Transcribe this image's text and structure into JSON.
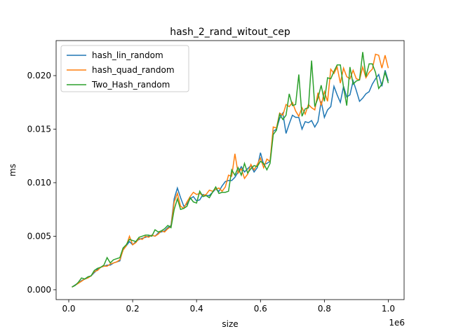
{
  "chart_data": {
    "type": "line",
    "title": "hash_2_rand_witout_cep",
    "x_label": "size",
    "y_label": "ms",
    "x_offset_label": "1e6",
    "x": [
      10000,
      20000,
      30000,
      40000,
      50000,
      60000,
      70000,
      80000,
      90000,
      100000,
      110000,
      120000,
      130000,
      140000,
      150000,
      160000,
      170000,
      180000,
      190000,
      200000,
      210000,
      220000,
      230000,
      240000,
      250000,
      260000,
      270000,
      280000,
      290000,
      300000,
      310000,
      320000,
      330000,
      340000,
      350000,
      360000,
      370000,
      380000,
      390000,
      400000,
      410000,
      420000,
      430000,
      440000,
      450000,
      460000,
      470000,
      480000,
      490000,
      500000,
      510000,
      520000,
      530000,
      540000,
      550000,
      560000,
      570000,
      580000,
      590000,
      600000,
      610000,
      620000,
      630000,
      640000,
      650000,
      660000,
      670000,
      680000,
      690000,
      700000,
      710000,
      720000,
      730000,
      740000,
      750000,
      760000,
      770000,
      780000,
      790000,
      800000,
      810000,
      820000,
      830000,
      840000,
      850000,
      860000,
      870000,
      880000,
      890000,
      900000,
      910000,
      920000,
      930000,
      940000,
      950000,
      960000,
      970000,
      980000,
      990000,
      1000000
    ],
    "series": [
      {
        "name": "hash_lin_random",
        "color": "#1f77b4",
        "values": [
          0.00025,
          0.00045,
          0.00062,
          0.00085,
          0.001,
          0.0012,
          0.0013,
          0.0016,
          0.0019,
          0.0021,
          0.0022,
          0.0023,
          0.0023,
          0.0025,
          0.0026,
          0.0027,
          0.0038,
          0.0041,
          0.0045,
          0.0042,
          0.0045,
          0.0047,
          0.0048,
          0.0049,
          0.005,
          0.0051,
          0.005,
          0.0053,
          0.0054,
          0.0055,
          0.0058,
          0.006,
          0.0085,
          0.0095,
          0.0086,
          0.0078,
          0.008,
          0.0085,
          0.0087,
          0.0083,
          0.0084,
          0.0089,
          0.0088,
          0.0088,
          0.0091,
          0.0094,
          0.0092,
          0.0097,
          0.0101,
          0.0102,
          0.0102,
          0.0105,
          0.011,
          0.0115,
          0.011,
          0.0113,
          0.0116,
          0.011,
          0.0114,
          0.0128,
          0.0117,
          0.0118,
          0.012,
          0.0148,
          0.015,
          0.016,
          0.0165,
          0.0146,
          0.0155,
          0.0163,
          0.0161,
          0.0161,
          0.015,
          0.0157,
          0.0156,
          0.0158,
          0.0152,
          0.0157,
          0.0176,
          0.0161,
          0.0168,
          0.0171,
          0.019,
          0.0182,
          0.0175,
          0.019,
          0.018,
          0.0182,
          0.0195,
          0.0186,
          0.0176,
          0.0179,
          0.0183,
          0.0185,
          0.0192,
          0.0197,
          0.0201,
          0.019,
          0.0205,
          0.0195
        ]
      },
      {
        "name": "hash_quad_random",
        "color": "#ff7f0e",
        "values": [
          0.00025,
          0.00042,
          0.0006,
          0.0008,
          0.001,
          0.0011,
          0.0013,
          0.0017,
          0.0018,
          0.0021,
          0.0022,
          0.0022,
          0.0024,
          0.0025,
          0.0026,
          0.0028,
          0.0037,
          0.0041,
          0.005,
          0.0042,
          0.0044,
          0.0048,
          0.0047,
          0.005,
          0.0049,
          0.0051,
          0.005,
          0.0052,
          0.0055,
          0.0054,
          0.0057,
          0.0059,
          0.0082,
          0.009,
          0.0078,
          0.0076,
          0.0082,
          0.0087,
          0.0091,
          0.0089,
          0.009,
          0.0088,
          0.0089,
          0.0093,
          0.0092,
          0.0094,
          0.0095,
          0.0092,
          0.0096,
          0.0107,
          0.0106,
          0.0127,
          0.0109,
          0.0113,
          0.0104,
          0.0108,
          0.0117,
          0.0112,
          0.0117,
          0.0123,
          0.0114,
          0.0122,
          0.012,
          0.0152,
          0.0151,
          0.0165,
          0.0163,
          0.0173,
          0.0171,
          0.0175,
          0.0167,
          0.0162,
          0.017,
          0.0164,
          0.0173,
          0.017,
          0.0168,
          0.0184,
          0.0172,
          0.0185,
          0.0176,
          0.0206,
          0.0202,
          0.0208,
          0.0193,
          0.0207,
          0.0199,
          0.0197,
          0.0205,
          0.0197,
          0.0196,
          0.0208,
          0.0198,
          0.0203,
          0.0206,
          0.022,
          0.0219,
          0.0207,
          0.0219,
          0.0207
        ]
      },
      {
        "name": "Two_Hash_random",
        "color": "#2ca02c",
        "values": [
          0.00025,
          0.0004,
          0.0007,
          0.0011,
          0.001,
          0.0012,
          0.0013,
          0.0018,
          0.002,
          0.0021,
          0.0023,
          0.003,
          0.0025,
          0.0028,
          0.0029,
          0.003,
          0.0039,
          0.0042,
          0.0047,
          0.0046,
          0.0045,
          0.0049,
          0.005,
          0.0051,
          0.0051,
          0.005,
          0.0056,
          0.0054,
          0.0055,
          0.0057,
          0.006,
          0.0058,
          0.0075,
          0.0085,
          0.0075,
          0.0076,
          0.0078,
          0.0086,
          0.0082,
          0.0081,
          0.0092,
          0.0087,
          0.0088,
          0.0086,
          0.0091,
          0.0096,
          0.009,
          0.0091,
          0.0091,
          0.0092,
          0.0112,
          0.0107,
          0.0114,
          0.0107,
          0.0118,
          0.0109,
          0.0113,
          0.0116,
          0.0115,
          0.012,
          0.0118,
          0.0112,
          0.0118,
          0.0145,
          0.0149,
          0.0164,
          0.0159,
          0.0163,
          0.0183,
          0.0172,
          0.0173,
          0.0201,
          0.0162,
          0.0169,
          0.017,
          0.0214,
          0.0171,
          0.0179,
          0.0191,
          0.0176,
          0.0198,
          0.0197,
          0.0204,
          0.021,
          0.021,
          0.0189,
          0.0172,
          0.0208,
          0.0192,
          0.0195,
          0.0196,
          0.0222,
          0.0199,
          0.0211,
          0.0211,
          0.0203,
          0.0188,
          0.0192,
          0.0203,
          0.0193
        ]
      }
    ],
    "xlim": [
      -39500,
      1049500
    ],
    "ylim": [
      -0.00092,
      0.02327
    ],
    "xticks": [
      {
        "value": 0,
        "label": "0.0"
      },
      {
        "value": 200000,
        "label": "0.2"
      },
      {
        "value": 400000,
        "label": "0.4"
      },
      {
        "value": 600000,
        "label": "0.6"
      },
      {
        "value": 800000,
        "label": "0.8"
      },
      {
        "value": 1000000,
        "label": "1.0"
      }
    ],
    "yticks": [
      {
        "value": 0,
        "label": "0.000"
      },
      {
        "value": 0.005,
        "label": "0.005"
      },
      {
        "value": 0.01,
        "label": "0.010"
      },
      {
        "value": 0.015,
        "label": "0.015"
      },
      {
        "value": 0.02,
        "label": "0.020"
      }
    ],
    "legend": "upper left",
    "grid": false
  }
}
